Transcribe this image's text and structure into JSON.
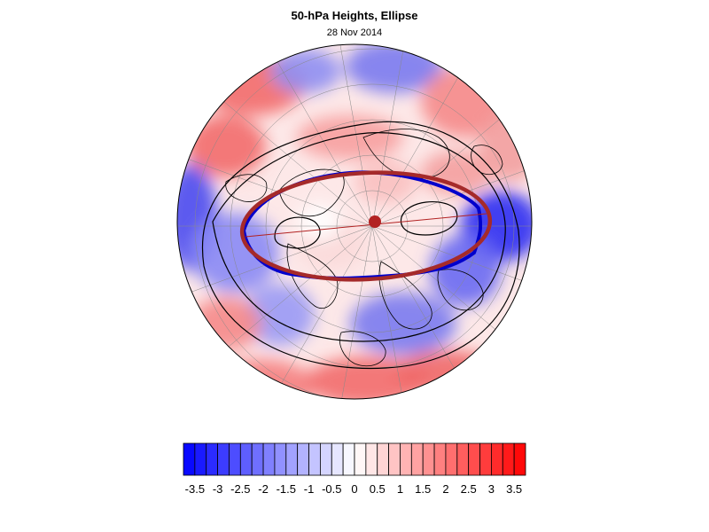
{
  "title": "50-hPa Heights, Ellipse",
  "subtitle": "28 Nov 2014",
  "colorbar": {
    "tick_labels": [
      "-3.5",
      "-3",
      "-2.5",
      "-2",
      "-1.5",
      "-1",
      "-0.5",
      "0",
      "0.5",
      "1",
      "1.5",
      "2",
      "2.5",
      "3",
      "3.5"
    ],
    "levels": [
      -3.75,
      -3.5,
      -3.25,
      -3,
      -2.75,
      -2.5,
      -2.25,
      -2,
      -1.75,
      -1.5,
      -1.25,
      -1,
      -0.75,
      -0.5,
      -0.25,
      0,
      0.25,
      0.5,
      0.75,
      1,
      1.25,
      1.5,
      1.75,
      2,
      2.25,
      2.5,
      2.75,
      3,
      3.25,
      3.5,
      3.75
    ],
    "min_color": "#0000ff",
    "mid_color": "#ffffff",
    "max_color": "#ff0000"
  },
  "map": {
    "projection": "north-polar-stereographic",
    "field": "50-hPa height anomaly (shaded)",
    "outline_color": "#000000"
  },
  "ellipse": {
    "fitted_color": "#a52a2a",
    "contour_color": "#0000cc",
    "center_color": "#b22222"
  }
}
